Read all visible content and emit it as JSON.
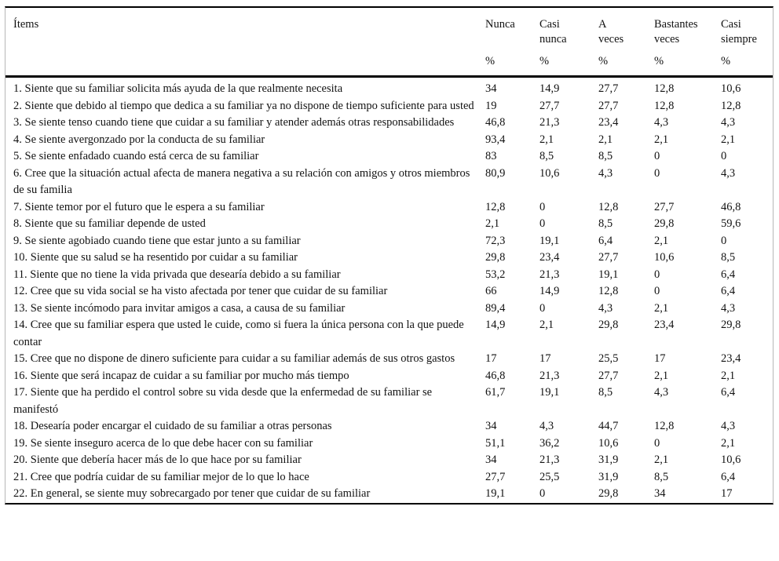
{
  "table": {
    "header": {
      "items_label": "Ítems",
      "unit": "%",
      "columns": [
        "Nunca",
        "Casi\nnunca",
        "A\nveces",
        "Bastantes\nveces",
        "Casi\nsiempre"
      ]
    },
    "rows": [
      {
        "text": "1. Siente que su familiar solicita más ayuda de la que realmente necesita",
        "values": [
          "34",
          "14,9",
          "27,7",
          "12,8",
          "10,6"
        ]
      },
      {
        "text": "2. Siente que debido al tiempo que dedica a su familiar ya no dispone de tiempo suficiente para usted",
        "values": [
          "19",
          "27,7",
          "27,7",
          "12,8",
          "12,8"
        ]
      },
      {
        "text": "3. Se siente tenso cuando tiene que cuidar a su familiar y atender además otras responsabilidades",
        "values": [
          "46,8",
          "21,3",
          "23,4",
          "4,3",
          "4,3"
        ]
      },
      {
        "text": "4. Se siente avergonzado por la conducta de su familiar",
        "values": [
          "93,4",
          "2,1",
          "2,1",
          "2,1",
          "2,1"
        ]
      },
      {
        "text": "5. Se siente enfadado cuando está cerca de su familiar",
        "values": [
          "83",
          "8,5",
          "8,5",
          "0",
          "0"
        ]
      },
      {
        "text": "6. Cree que la situación actual afecta de manera negativa a su relación con amigos y otros miembros de su familia",
        "values": [
          "80,9",
          "10,6",
          "4,3",
          "0",
          "4,3"
        ]
      },
      {
        "text": "7. Siente temor por el futuro que le espera a su familiar",
        "values": [
          "12,8",
          "0",
          "12,8",
          "27,7",
          "46,8"
        ]
      },
      {
        "text": "8. Siente que su familiar depende de usted",
        "values": [
          "2,1",
          "0",
          "8,5",
          "29,8",
          "59,6"
        ]
      },
      {
        "text": "9. Se siente agobiado cuando tiene que estar junto a su familiar",
        "values": [
          "72,3",
          "19,1",
          "6,4",
          "2,1",
          "0"
        ]
      },
      {
        "text": "10. Siente que su salud se ha resentido por cuidar a su familiar",
        "values": [
          "29,8",
          "23,4",
          "27,7",
          "10,6",
          "8,5"
        ]
      },
      {
        "text": "11. Siente que no tiene la vida privada que desearía debido a su familiar",
        "values": [
          "53,2",
          "21,3",
          "19,1",
          "0",
          "6,4"
        ]
      },
      {
        "text": "12. Cree que su vida social se ha visto afectada por tener que cuidar de su familiar",
        "values": [
          "66",
          "14,9",
          "12,8",
          "0",
          "6,4"
        ]
      },
      {
        "text": "13. Se siente incómodo para invitar amigos a casa, a causa de su familiar",
        "values": [
          "89,4",
          "0",
          "4,3",
          "2,1",
          "4,3"
        ]
      },
      {
        "text": "14. Cree que su familiar espera que usted le cuide, como si fuera la única persona con la que puede contar",
        "values": [
          "14,9",
          "2,1",
          "29,8",
          "23,4",
          "29,8"
        ]
      },
      {
        "text": "15. Cree que no dispone de dinero suficiente para cuidar a su familiar además de sus otros gastos",
        "values": [
          "17",
          "17",
          "25,5",
          "17",
          "23,4"
        ]
      },
      {
        "text": "16. Siente que será incapaz de cuidar a su familiar por mucho más tiempo",
        "values": [
          "46,8",
          "21,3",
          "27,7",
          "2,1",
          "2,1"
        ]
      },
      {
        "text": "17. Siente que ha perdido el control sobre su vida desde que la enfermedad de su familiar se manifestó",
        "values": [
          "61,7",
          "19,1",
          "8,5",
          "4,3",
          "6,4"
        ]
      },
      {
        "text": "18. Desearía poder encargar el cuidado de su familiar a otras personas",
        "values": [
          "34",
          "4,3",
          "44,7",
          "12,8",
          "4,3"
        ]
      },
      {
        "text": "19. Se siente inseguro acerca de lo que debe hacer con su familiar",
        "values": [
          "51,1",
          "36,2",
          "10,6",
          "0",
          "2,1"
        ]
      },
      {
        "text": "20. Siente que debería hacer más de lo que hace por su familiar",
        "values": [
          "34",
          "21,3",
          "31,9",
          "2,1",
          "10,6"
        ]
      },
      {
        "text": "21. Cree que podría cuidar de su familiar mejor de lo que lo hace",
        "values": [
          "27,7",
          "25,5",
          "31,9",
          "8,5",
          "6,4"
        ]
      },
      {
        "text": "22. En general, se siente muy sobrecargado por tener que cuidar de su familiar",
        "values": [
          "19,1",
          "0",
          "29,8",
          "34",
          "17"
        ]
      }
    ]
  }
}
